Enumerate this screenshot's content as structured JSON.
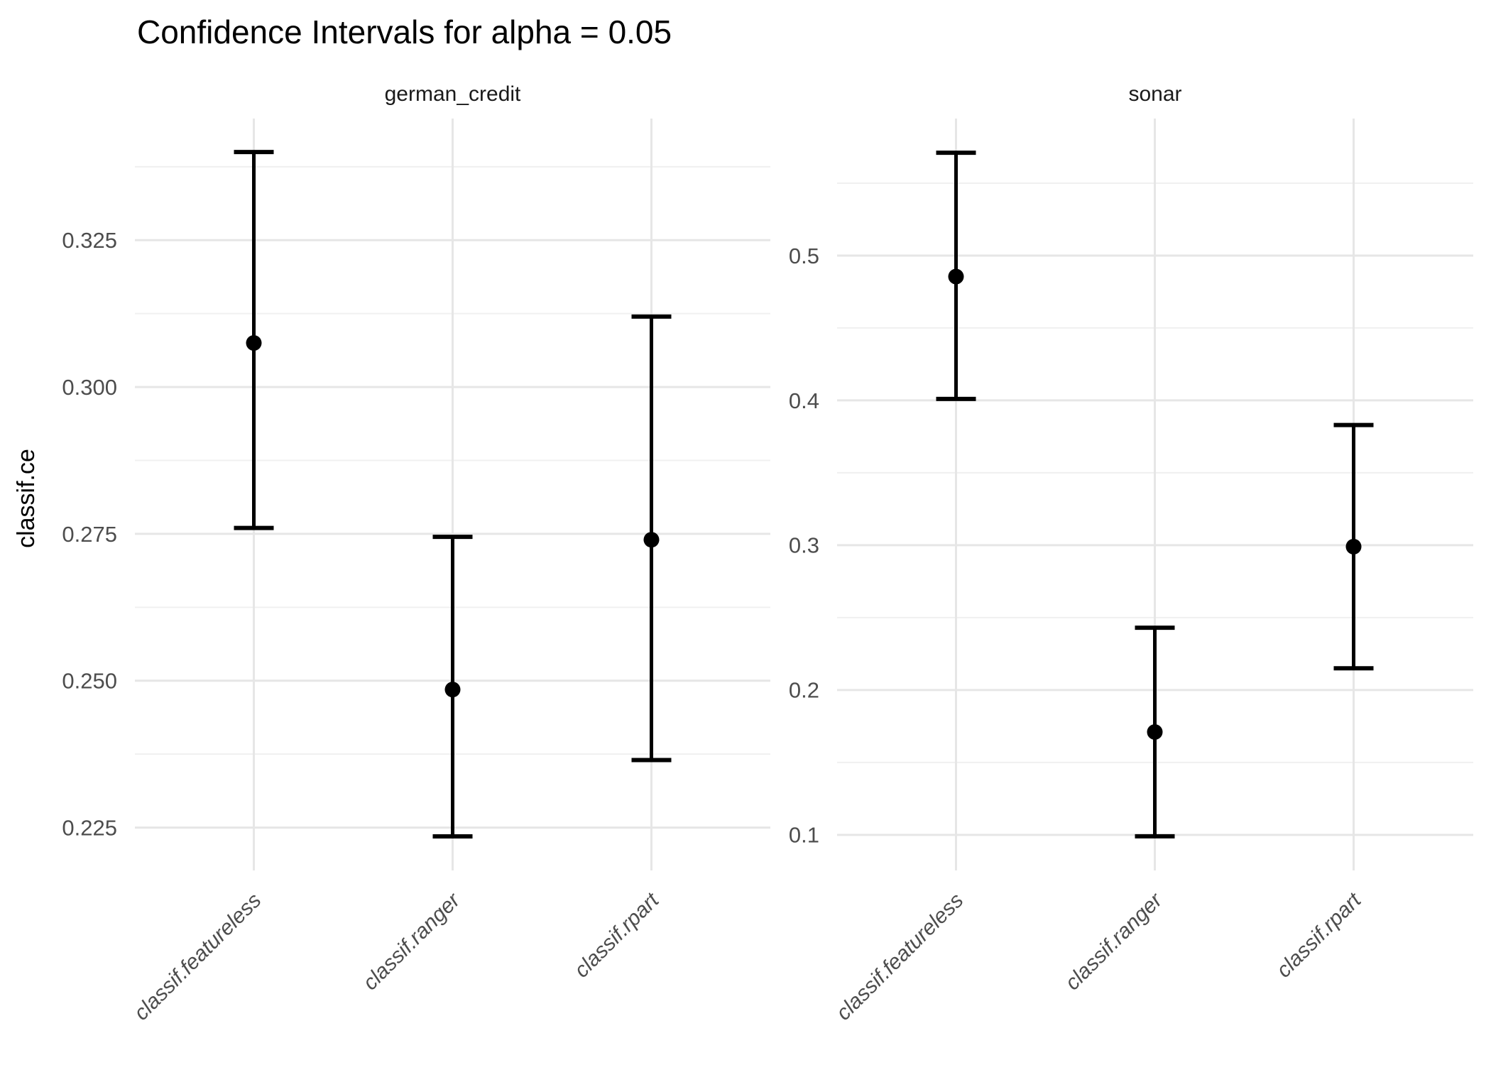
{
  "title": "Confidence Intervals for alpha = 0.05",
  "alpha_shown_in_title": "0.05",
  "colors": {
    "background": "#ffffff",
    "errorbar": "#000000",
    "grid_major": "#e6e6e6",
    "grid_minor": "#f0f0f0",
    "tick_label": "#4d4d4d",
    "strip_text": "#1a1a1a",
    "title_text": "#000000",
    "axis_title_text": "#000000"
  },
  "chart_data": {
    "type": "scatter",
    "subtype": "pointrange-errorbar",
    "title": "Confidence Intervals for alpha = 0.05",
    "xlabel": "",
    "ylabel": "classif.ce",
    "legend": "none",
    "grid": "on",
    "categories": [
      "classif.featureless",
      "classif.ranger",
      "classif.rpart"
    ],
    "facets": [
      {
        "label": "german_credit",
        "ylim": [
          0.2177,
          0.3457
        ],
        "yticks": [
          0.225,
          0.25,
          0.275,
          0.3,
          0.325
        ],
        "ytick_labels": [
          "0.225",
          "0.250",
          "0.275",
          "0.300",
          "0.325"
        ],
        "minor_yticks": [
          0.2375,
          0.2625,
          0.2875,
          0.3125,
          0.3375
        ],
        "points": [
          {
            "learner": "classif.featureless",
            "lower": 0.276,
            "mid": 0.3075,
            "upper": 0.34
          },
          {
            "learner": "classif.ranger",
            "lower": 0.2235,
            "mid": 0.2485,
            "upper": 0.2745
          },
          {
            "learner": "classif.rpart",
            "lower": 0.2365,
            "mid": 0.274,
            "upper": 0.312
          }
        ]
      },
      {
        "label": "sonar",
        "ylim": [
          0.0754,
          0.5946
        ],
        "yticks": [
          0.1,
          0.2,
          0.3,
          0.4,
          0.5
        ],
        "ytick_labels": [
          "0.1",
          "0.2",
          "0.3",
          "0.4",
          "0.5"
        ],
        "minor_yticks": [
          0.15,
          0.25,
          0.35,
          0.45,
          0.55
        ],
        "points": [
          {
            "learner": "classif.featureless",
            "lower": 0.401,
            "mid": 0.4855,
            "upper": 0.571
          },
          {
            "learner": "classif.ranger",
            "lower": 0.099,
            "mid": 0.171,
            "upper": 0.243
          },
          {
            "learner": "classif.rpart",
            "lower": 0.215,
            "mid": 0.299,
            "upper": 0.383
          }
        ]
      }
    ]
  }
}
